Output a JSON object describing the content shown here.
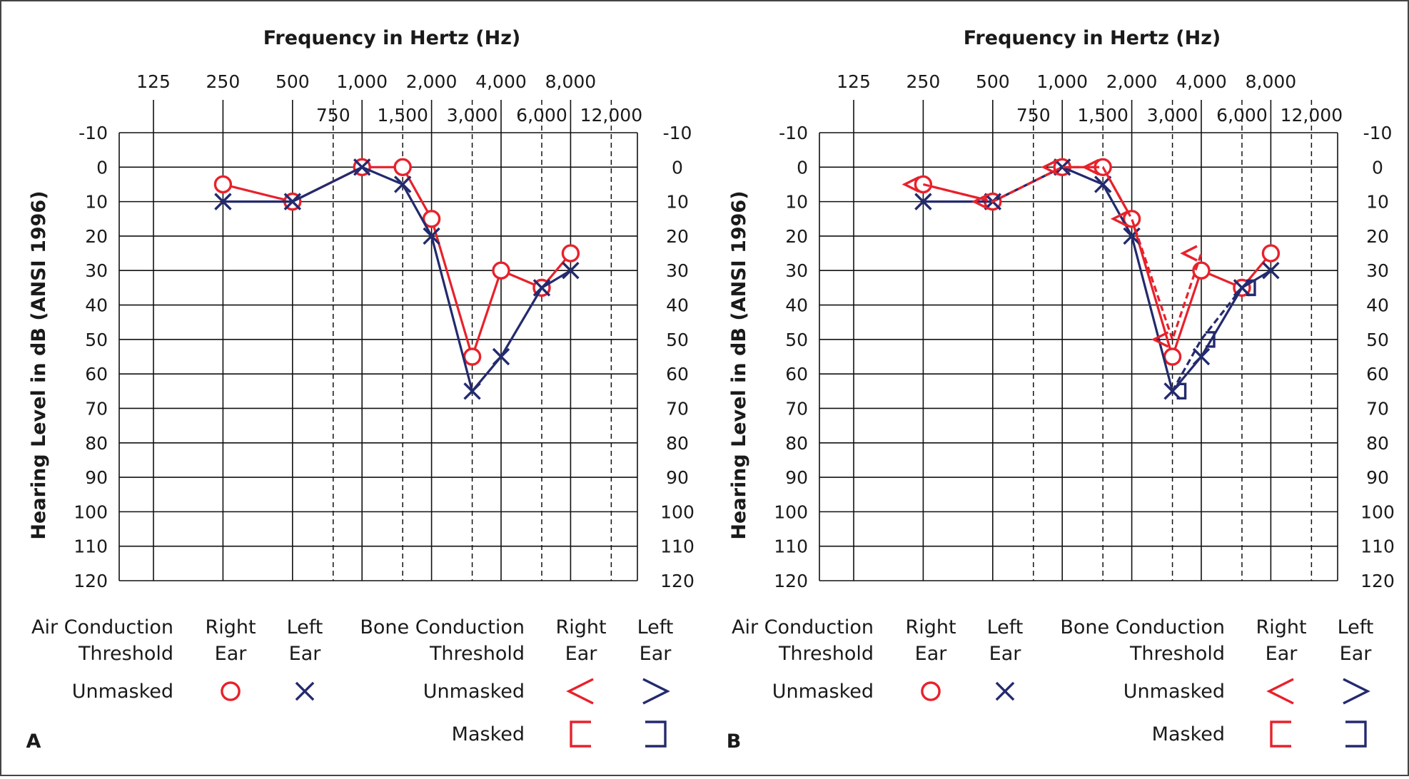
{
  "colors": {
    "right": "#e8212b",
    "left": "#232a6e",
    "grid": "#111111",
    "text": "#1a1a1a"
  },
  "legend": {
    "air_title": [
      "Air Conduction",
      "Threshold"
    ],
    "bone_title": [
      "Bone Conduction",
      "Threshold"
    ],
    "right_ear": [
      "Right",
      "Ear"
    ],
    "left_ear": [
      "Left",
      "Ear"
    ],
    "unmasked": "Unmasked",
    "masked": "Masked"
  },
  "chart_data": [
    {
      "panel_label": "A",
      "type": "line",
      "title": "Frequency in Hertz (Hz)",
      "ylabel": "Hearing Level in dB (ANSI 1996)",
      "ylim": [
        -10,
        120
      ],
      "yticks": [
        -10,
        0,
        10,
        20,
        30,
        40,
        50,
        60,
        70,
        80,
        90,
        100,
        110,
        120
      ],
      "freq_major": [
        "125",
        "250",
        "500",
        "1,000",
        "2,000",
        "4,000",
        "8,000"
      ],
      "freq_minor": [
        "750",
        "1,500",
        "3,000",
        "6,000",
        "12,000"
      ],
      "x": [
        "250",
        "500",
        "1,000",
        "1,500",
        "2,000",
        "3,000",
        "4,000",
        "6,000",
        "8,000"
      ],
      "series": [
        {
          "name": "Right Ear Air Conduction Unmasked",
          "ear": "right",
          "symbol": "circle",
          "line": "solid",
          "values": [
            5,
            10,
            0,
            0,
            15,
            55,
            30,
            35,
            25
          ]
        },
        {
          "name": "Left Ear Air Conduction Unmasked",
          "ear": "left",
          "symbol": "x",
          "line": "solid",
          "values": [
            10,
            10,
            0,
            5,
            20,
            65,
            55,
            35,
            30
          ]
        }
      ]
    },
    {
      "panel_label": "B",
      "type": "line",
      "title": "Frequency in Hertz (Hz)",
      "ylabel": "Hearing Level in dB (ANSI 1996)",
      "ylim": [
        -10,
        120
      ],
      "yticks": [
        -10,
        0,
        10,
        20,
        30,
        40,
        50,
        60,
        70,
        80,
        90,
        100,
        110,
        120
      ],
      "freq_major": [
        "125",
        "250",
        "500",
        "1,000",
        "2,000",
        "4,000",
        "8,000"
      ],
      "freq_minor": [
        "750",
        "1,500",
        "3,000",
        "6,000",
        "12,000"
      ],
      "x": [
        "250",
        "500",
        "1,000",
        "1,500",
        "2,000",
        "3,000",
        "4,000",
        "6,000",
        "8,000"
      ],
      "series": [
        {
          "name": "Right Ear Air Conduction Unmasked",
          "ear": "right",
          "symbol": "circle",
          "line": "solid",
          "values": [
            5,
            10,
            0,
            0,
            15,
            55,
            30,
            35,
            25
          ]
        },
        {
          "name": "Left Ear Air Conduction Unmasked",
          "ear": "left",
          "symbol": "x",
          "line": "solid",
          "values": [
            10,
            10,
            0,
            5,
            20,
            65,
            55,
            35,
            30
          ]
        },
        {
          "name": "Right Ear Bone Conduction Unmasked",
          "ear": "right",
          "symbol": "lt",
          "line": "dashed",
          "x": [
            "250",
            "500",
            "1,000",
            "1,500",
            "2,000",
            "3,000",
            "4,000"
          ],
          "values": [
            5,
            10,
            0,
            0,
            15,
            50,
            25
          ]
        },
        {
          "name": "Left Ear Bone Conduction Masked",
          "ear": "left",
          "symbol": "rbracket",
          "line": "dashed",
          "x": [
            "3,000",
            "4,000",
            "6,000"
          ],
          "values": [
            65,
            50,
            35
          ]
        }
      ]
    }
  ]
}
